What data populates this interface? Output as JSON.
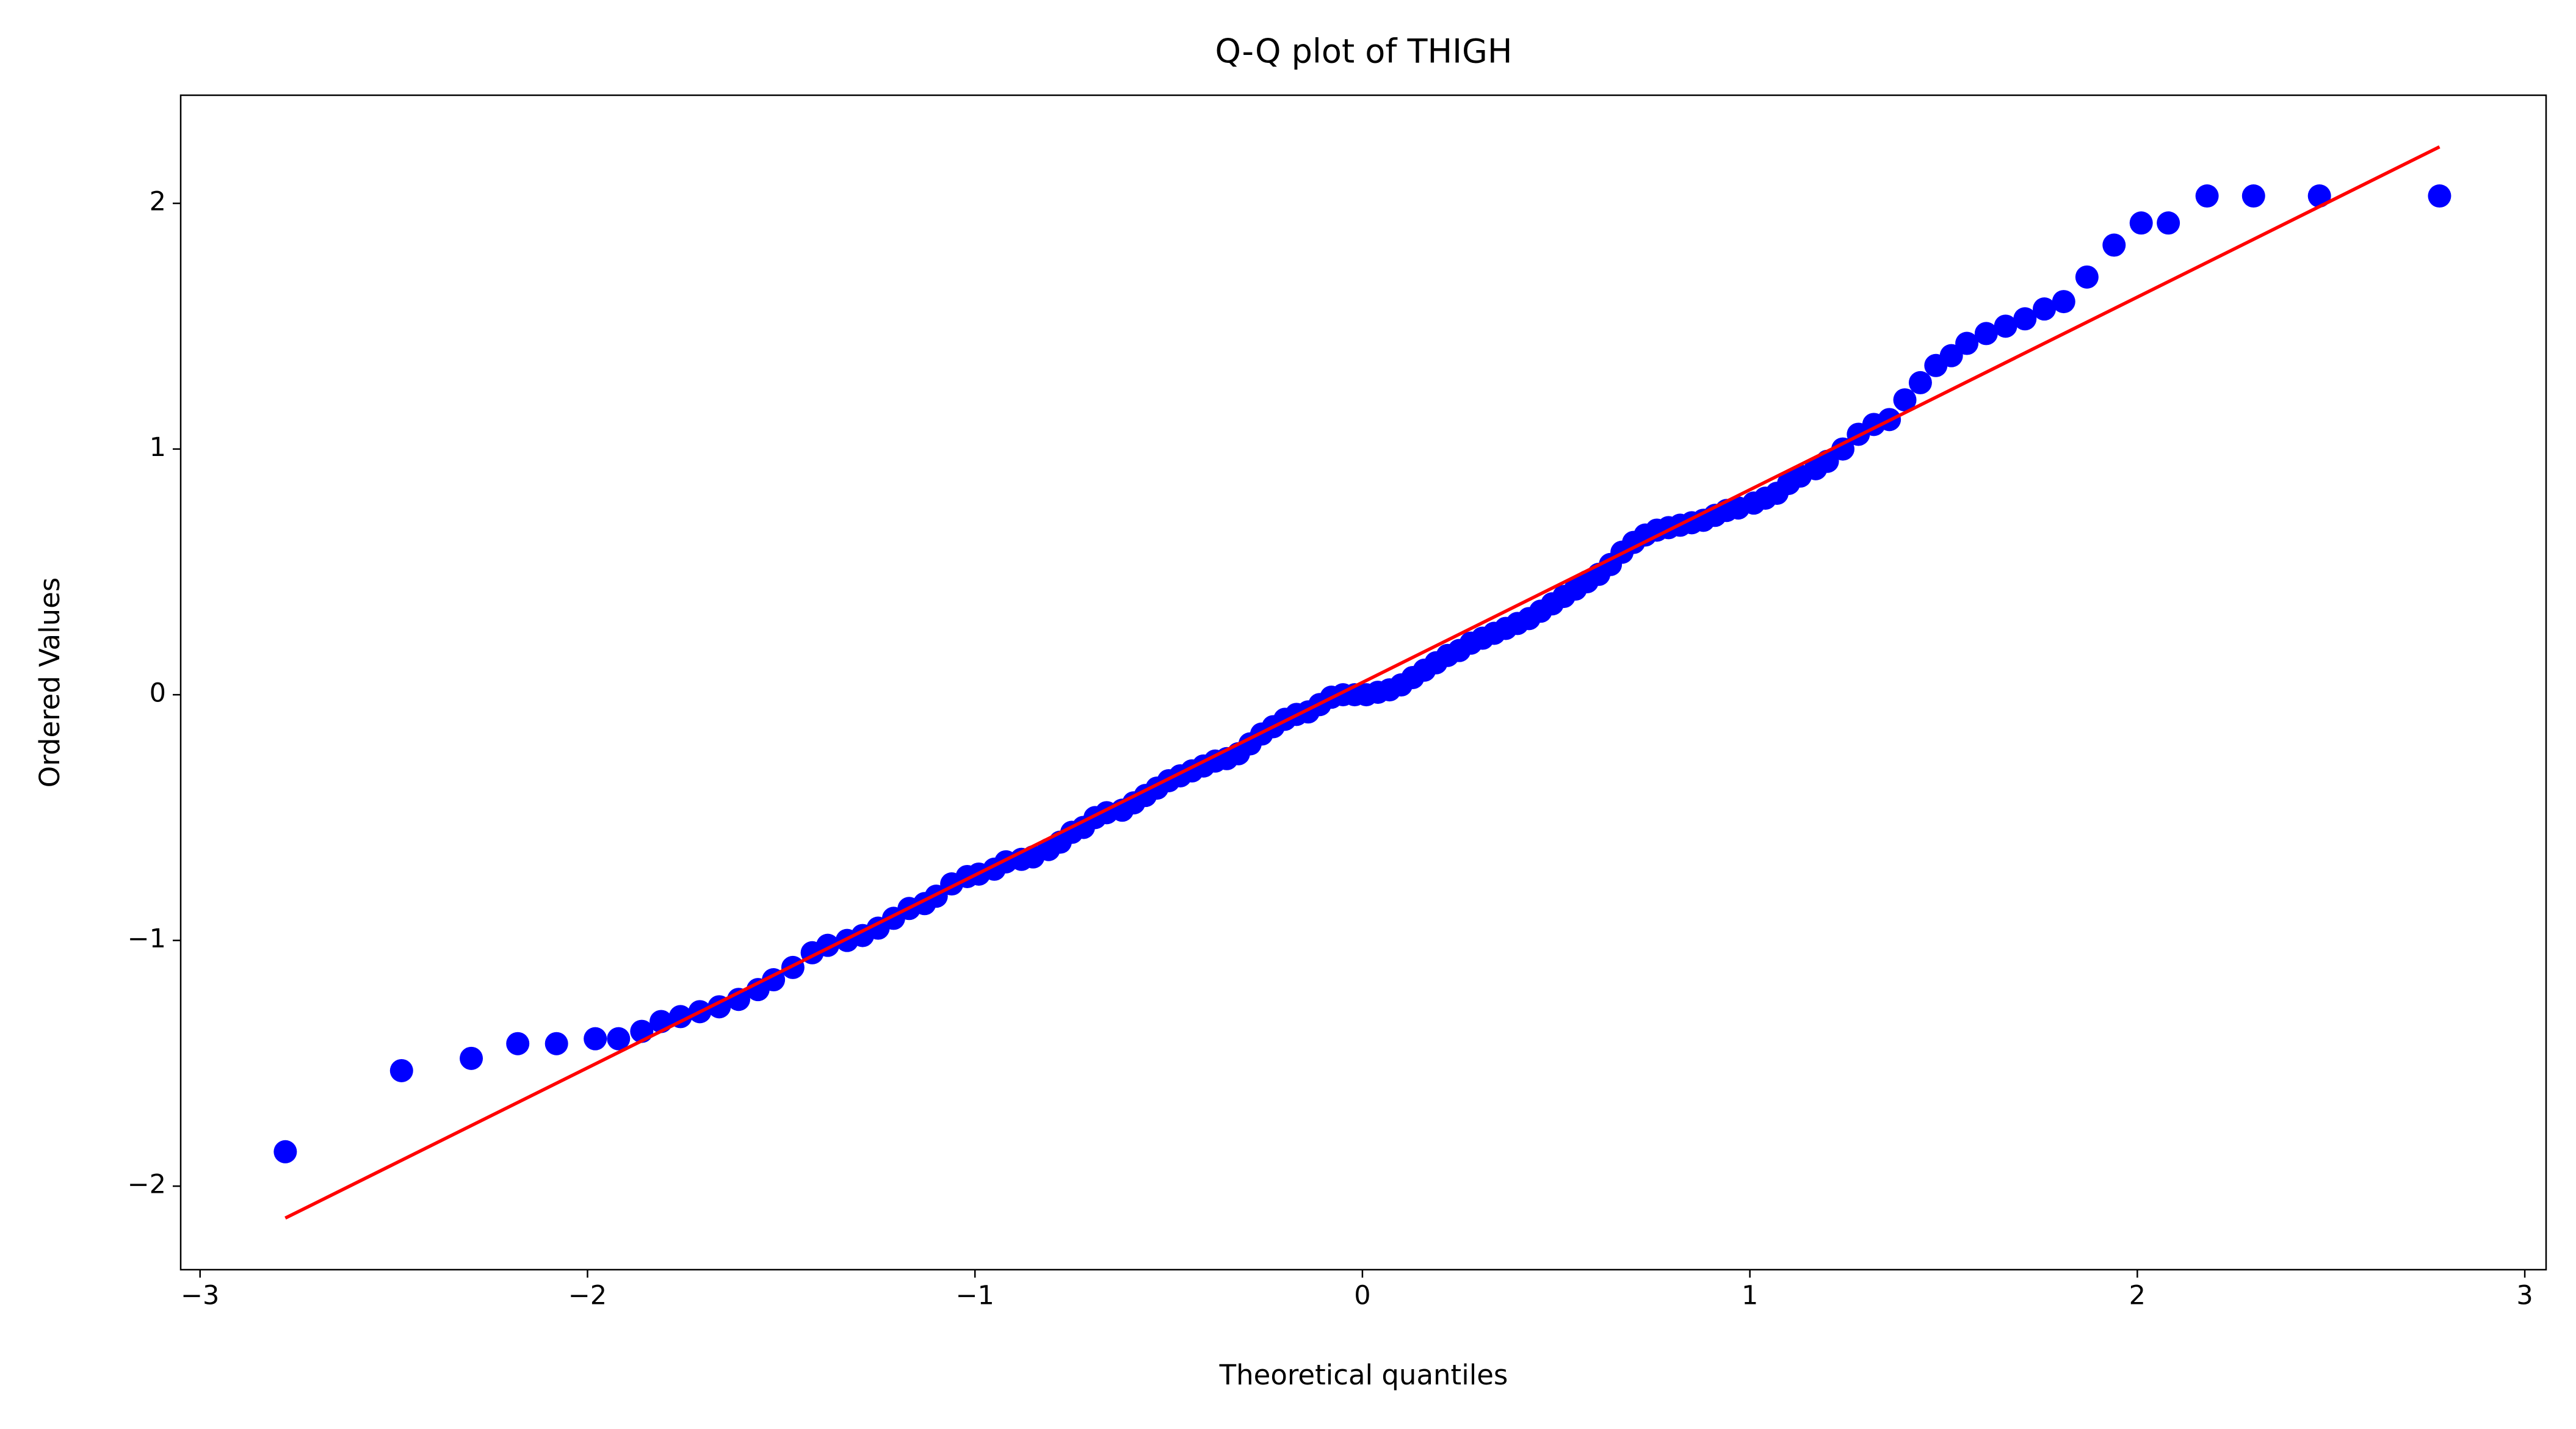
{
  "chart_data": {
    "type": "scatter",
    "title": "Q-Q plot of THIGH",
    "x_label": "Theoretical quantiles",
    "y_label": "Ordered Values",
    "color": "#0000ff",
    "x": [
      -2.78,
      -2.48,
      -2.3,
      -2.18,
      -2.08,
      -1.98,
      -1.92,
      -1.86,
      -1.81,
      -1.76,
      -1.71,
      -1.66,
      -1.61,
      -1.56,
      -1.52,
      -1.47,
      -1.42,
      -1.38,
      -1.33,
      -1.29,
      -1.25,
      -1.21,
      -1.17,
      -1.13,
      -1.1,
      -1.06,
      -1.02,
      -0.99,
      -0.95,
      -0.92,
      -0.88,
      -0.85,
      -0.81,
      -0.78,
      -0.75,
      -0.72,
      -0.69,
      -0.66,
      -0.62,
      -0.59,
      -0.56,
      -0.53,
      -0.5,
      -0.47,
      -0.44,
      -0.41,
      -0.38,
      -0.35,
      -0.32,
      -0.29,
      -0.26,
      -0.23,
      -0.2,
      -0.17,
      -0.14,
      -0.11,
      -0.08,
      -0.05,
      -0.02,
      0.01,
      0.04,
      0.07,
      0.1,
      0.13,
      0.16,
      0.19,
      0.22,
      0.25,
      0.28,
      0.31,
      0.34,
      0.37,
      0.4,
      0.43,
      0.46,
      0.49,
      0.52,
      0.55,
      0.58,
      0.61,
      0.64,
      0.67,
      0.7,
      0.73,
      0.76,
      0.79,
      0.82,
      0.85,
      0.88,
      0.91,
      0.94,
      0.97,
      1.01,
      1.04,
      1.07,
      1.1,
      1.13,
      1.17,
      1.2,
      1.24,
      1.28,
      1.32,
      1.36,
      1.4,
      1.44,
      1.48,
      1.52,
      1.56,
      1.61,
      1.66,
      1.71,
      1.76,
      1.81,
      1.87,
      1.94,
      2.01,
      2.08,
      2.18,
      2.3,
      2.47,
      2.78
    ],
    "values": [
      -1.86,
      -1.53,
      -1.48,
      -1.42,
      -1.42,
      -1.4,
      -1.4,
      -1.37,
      -1.33,
      -1.31,
      -1.29,
      -1.27,
      -1.24,
      -1.2,
      -1.16,
      -1.11,
      -1.05,
      -1.02,
      -1.0,
      -0.98,
      -0.95,
      -0.91,
      -0.87,
      -0.85,
      -0.82,
      -0.77,
      -0.74,
      -0.73,
      -0.71,
      -0.68,
      -0.67,
      -0.66,
      -0.63,
      -0.6,
      -0.56,
      -0.54,
      -0.5,
      -0.48,
      -0.47,
      -0.44,
      -0.41,
      -0.38,
      -0.35,
      -0.33,
      -0.31,
      -0.29,
      -0.27,
      -0.26,
      -0.24,
      -0.2,
      -0.16,
      -0.13,
      -0.1,
      -0.08,
      -0.07,
      -0.04,
      -0.01,
      0.0,
      0.0,
      0.0,
      0.01,
      0.02,
      0.04,
      0.07,
      0.1,
      0.13,
      0.16,
      0.18,
      0.21,
      0.23,
      0.25,
      0.27,
      0.29,
      0.31,
      0.34,
      0.37,
      0.4,
      0.43,
      0.46,
      0.49,
      0.53,
      0.58,
      0.62,
      0.65,
      0.67,
      0.68,
      0.69,
      0.7,
      0.71,
      0.73,
      0.75,
      0.76,
      0.78,
      0.8,
      0.82,
      0.86,
      0.89,
      0.92,
      0.95,
      1.0,
      1.06,
      1.1,
      1.12,
      1.2,
      1.27,
      1.34,
      1.38,
      1.43,
      1.47,
      1.5,
      1.53,
      1.57,
      1.6,
      1.7,
      1.83,
      1.92,
      1.92,
      2.03,
      2.03,
      2.03,
      2.03
    ],
    "fit_line": {
      "color": "#ff0000",
      "x": [
        -2.78,
        2.78
      ],
      "values": [
        -2.13,
        2.23
      ]
    },
    "xlim": [
      -3.05,
      3.055
    ],
    "ylim": [
      -2.34,
      2.44
    ],
    "xticks": [
      {
        "value": -3,
        "label": "−3"
      },
      {
        "value": -2,
        "label": "−2"
      },
      {
        "value": -1,
        "label": "−1"
      },
      0,
      1,
      2,
      3
    ],
    "yticks": [
      {
        "value": -2,
        "label": "−2"
      },
      {
        "value": -1,
        "label": "−1"
      },
      0,
      1,
      2
    ],
    "grid": false
  }
}
